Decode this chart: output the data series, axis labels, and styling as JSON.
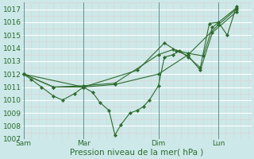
{
  "xlabel": "Pression niveau de la mer( hPa )",
  "ylim": [
    1007,
    1017.5
  ],
  "yticks": [
    1007,
    1008,
    1009,
    1010,
    1011,
    1012,
    1013,
    1014,
    1015,
    1016,
    1017
  ],
  "bg_color": "#cce8e8",
  "grid_color_major": "#ffffff",
  "grid_color_minor": "#e0d0d0",
  "line_color": "#2d6b2d",
  "marker_color": "#2d6b2d",
  "xtick_labels": [
    "Sam",
    "Mar",
    "Dim",
    "Lun"
  ],
  "xtick_positions": [
    0.0,
    2.0,
    4.5,
    6.5
  ],
  "xlim": [
    -0.05,
    7.6
  ],
  "vline_positions": [
    0.0,
    2.0,
    4.5,
    6.5
  ],
  "lines": [
    [
      0.0,
      1012.0,
      0.25,
      1011.6,
      0.6,
      1011.0,
      1.0,
      1010.3,
      1.3,
      1010.0,
      1.7,
      1010.5,
      2.0,
      1011.0,
      2.3,
      1010.6,
      2.55,
      1009.8,
      2.85,
      1009.2,
      3.05,
      1007.3,
      3.25,
      1008.1,
      3.55,
      1009.0,
      3.8,
      1009.2,
      4.0,
      1009.5,
      4.2,
      1010.0,
      4.5,
      1011.1,
      4.7,
      1013.3,
      5.0,
      1013.5,
      5.2,
      1013.8,
      5.5,
      1013.3,
      5.9,
      1012.5,
      6.2,
      1015.9,
      6.5,
      1016.0,
      6.8,
      1015.0,
      7.1,
      1017.2
    ],
    [
      0.0,
      1012.0,
      1.0,
      1011.0,
      2.0,
      1011.0,
      3.05,
      1011.2,
      4.5,
      1012.0,
      5.5,
      1013.5,
      6.5,
      1015.8,
      7.1,
      1017.0
    ],
    [
      0.0,
      1012.0,
      1.0,
      1011.0,
      2.0,
      1011.1,
      3.05,
      1011.3,
      4.5,
      1013.5,
      5.0,
      1013.9,
      5.5,
      1013.6,
      6.0,
      1013.4,
      6.3,
      1015.6,
      7.1,
      1017.1
    ],
    [
      0.0,
      1012.0,
      2.0,
      1011.0,
      3.8,
      1012.3,
      4.7,
      1014.4,
      5.1,
      1013.8,
      5.5,
      1013.4,
      5.9,
      1012.3,
      6.3,
      1015.2,
      7.1,
      1016.8
    ]
  ],
  "figsize": [
    3.2,
    2.0
  ],
  "dpi": 100,
  "font_color": "#2d6b2d",
  "tick_fontsize": 6.5,
  "xlabel_fontsize": 7.5
}
